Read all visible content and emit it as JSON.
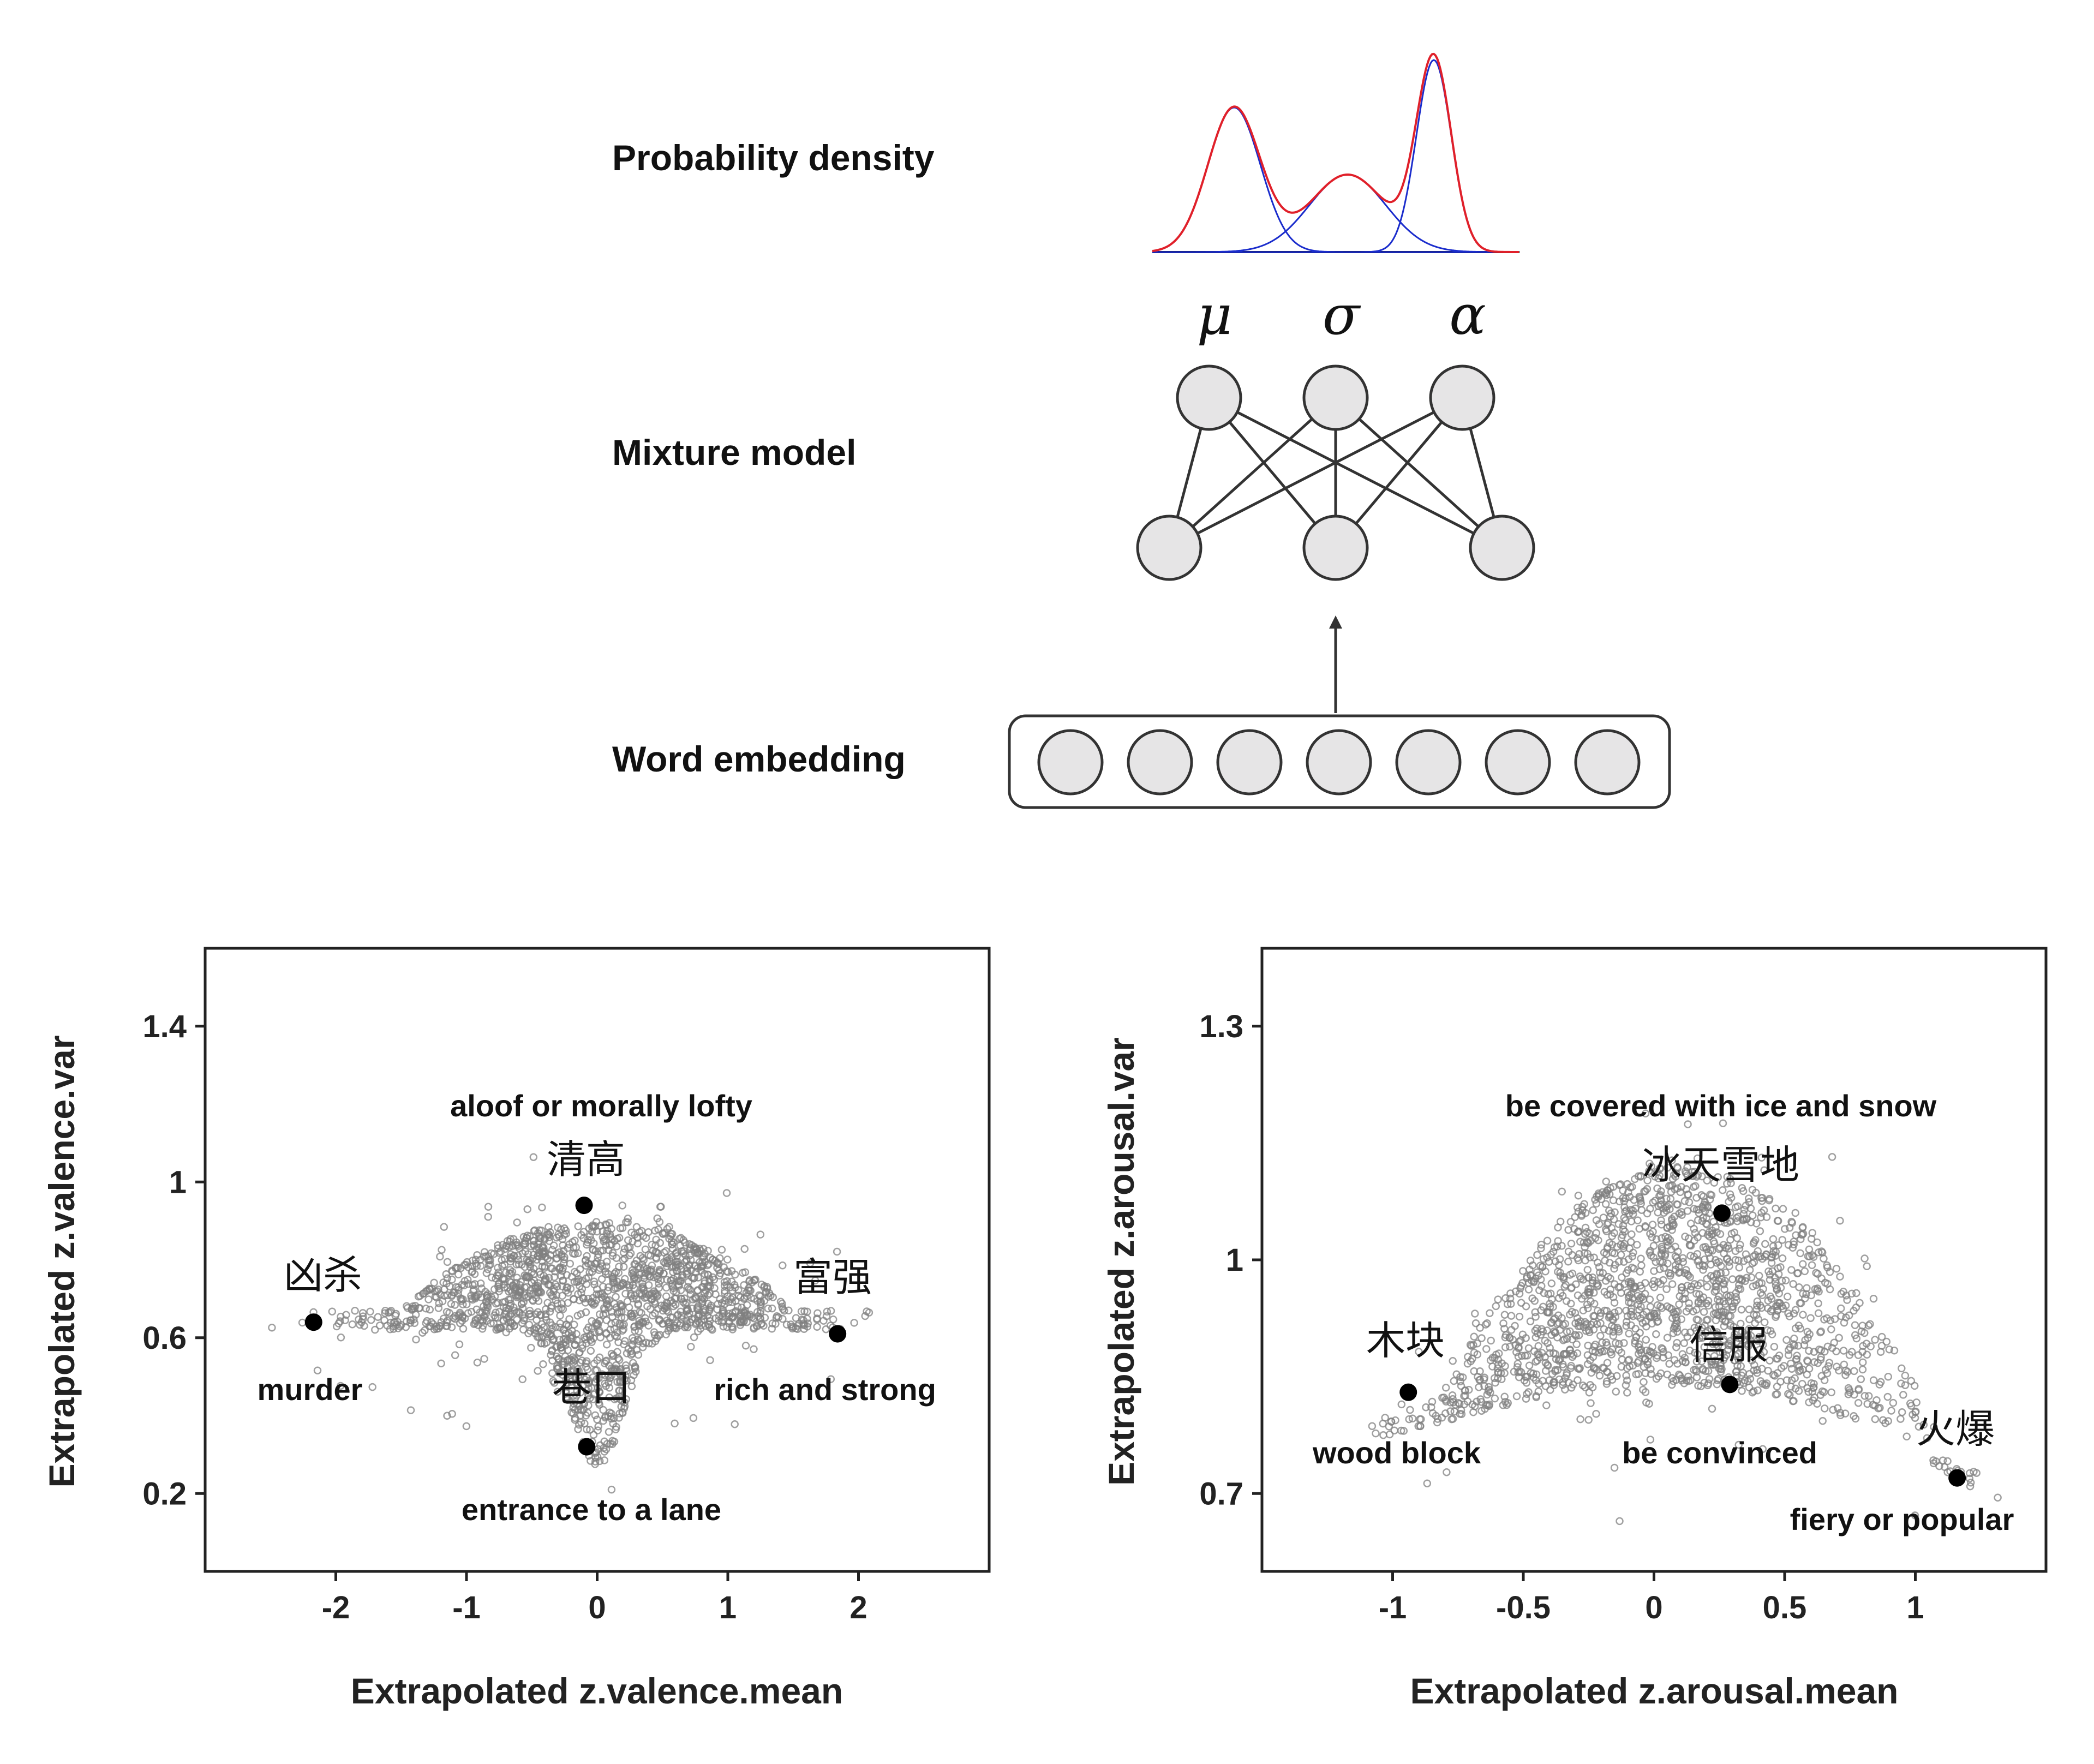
{
  "diagram": {
    "stages": [
      "Probability density",
      "Mixture model",
      "Word embedding"
    ],
    "parameters": [
      "μ",
      "σ",
      "α"
    ],
    "colors": {
      "mixture": "#e0202a",
      "component": "#1a2ccc",
      "node_fill": "#e6e5e6",
      "node_stroke": "#333333"
    }
  },
  "chart_data": [
    {
      "type": "scatter",
      "xlabel": "Extrapolated z.valence.mean",
      "ylabel": "Extrapolated z.valence.var",
      "xlim": [
        -3.0,
        3.0
      ],
      "ylim": [
        0.0,
        1.6
      ],
      "xticks": [
        -2,
        -1,
        0,
        1,
        2
      ],
      "xtick_labels": [
        "-2",
        "-1",
        "0",
        "1",
        "2"
      ],
      "yticks": [
        0.2,
        0.6,
        1.0,
        1.4
      ],
      "ytick_labels": [
        "0.2",
        "0.6",
        "1",
        "1.4"
      ],
      "cloud_color": "#808080",
      "highlights": [
        {
          "word": "凶杀",
          "gloss": "murder",
          "x": -2.17,
          "y": 0.64
        },
        {
          "word": "清高",
          "gloss": "aloof or morally lofty",
          "x": -0.1,
          "y": 0.94
        },
        {
          "word": "巷口",
          "gloss": "entrance to a lane",
          "x": -0.08,
          "y": 0.32
        },
        {
          "word": "富强",
          "gloss": "rich and strong",
          "x": 1.84,
          "y": 0.61
        }
      ]
    },
    {
      "type": "scatter",
      "xlabel": "Extrapolated z.arousal.mean",
      "ylabel": "Extrapolated z.arousal.var",
      "xlim": [
        -1.5,
        1.5
      ],
      "ylim": [
        0.6,
        1.4
      ],
      "xticks": [
        -1,
        -0.5,
        0,
        0.5,
        1
      ],
      "xtick_labels": [
        "-1",
        "-0.5",
        "0",
        "0.5",
        "1"
      ],
      "yticks": [
        0.7,
        1.0,
        1.3
      ],
      "ytick_labels": [
        "0.7",
        "1",
        "1.3"
      ],
      "cloud_color": "#808080",
      "highlights": [
        {
          "word": "木块",
          "gloss": "wood block",
          "x": -0.94,
          "y": 0.83
        },
        {
          "word": "冰天雪地",
          "gloss": "be covered with ice and snow",
          "x": 0.26,
          "y": 1.06
        },
        {
          "word": "信服",
          "gloss": "be convinced",
          "x": 0.29,
          "y": 0.84
        },
        {
          "word": "火爆",
          "gloss": "fiery or popular",
          "x": 1.16,
          "y": 0.72
        }
      ]
    }
  ]
}
